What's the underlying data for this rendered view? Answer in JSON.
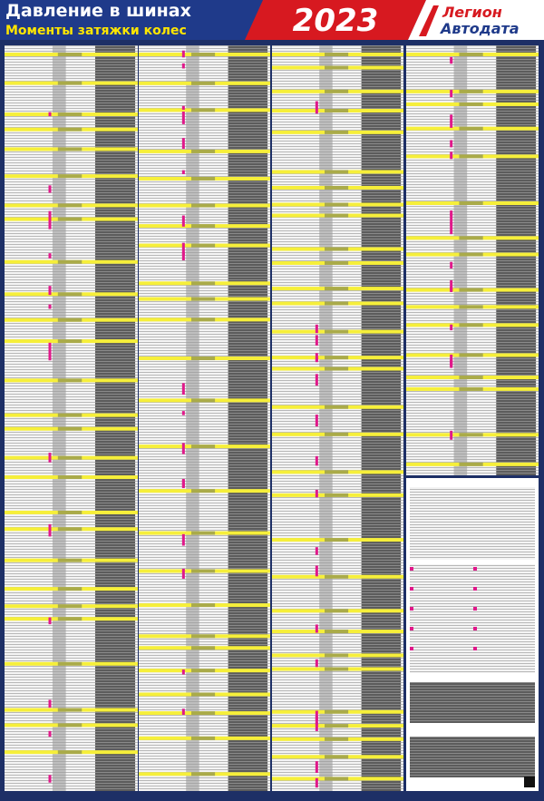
{
  "header": {
    "title": "Давление в шинах",
    "subtitle": "Моменты затяжки колес",
    "year": "2023",
    "logo": {
      "line1": "Легион",
      "line2": "Автодата"
    }
  }
}
